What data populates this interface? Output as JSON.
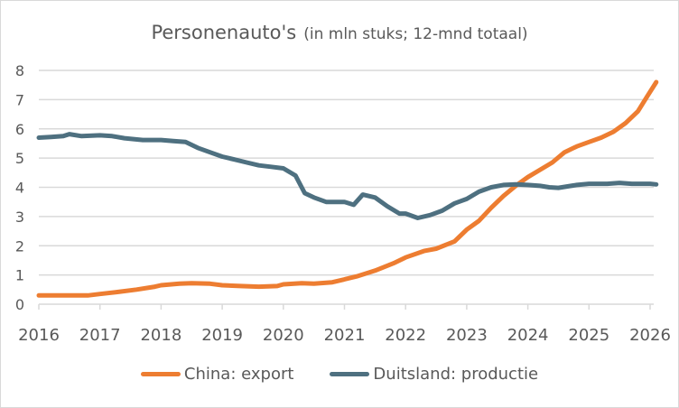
{
  "chart_data": {
    "type": "line",
    "title": "Personenauto's",
    "subtitle": "(in mln stuks; 12-mnd totaal)",
    "xlabel": "",
    "ylabel": "",
    "xlim": [
      2016,
      2026.15
    ],
    "ylim": [
      0,
      8
    ],
    "grid": true,
    "legend_position": "bottom",
    "x_ticks": [
      "2016",
      "2017",
      "2018",
      "2019",
      "2020",
      "2021",
      "2022",
      "2023",
      "2024",
      "2025",
      "2026"
    ],
    "y_ticks": [
      "0",
      "1",
      "2",
      "3",
      "4",
      "5",
      "6",
      "7",
      "8"
    ],
    "series": [
      {
        "name": "China: export",
        "color": "#ED7D31",
        "x": [
          2016,
          2016.5,
          2016.8,
          2017,
          2017.3,
          2017.6,
          2017.9,
          2018,
          2018.3,
          2018.5,
          2018.8,
          2019,
          2019.3,
          2019.6,
          2019.9,
          2020,
          2020.3,
          2020.5,
          2020.8,
          2021,
          2021.2,
          2021.5,
          2021.8,
          2022,
          2022.3,
          2022.5,
          2022.8,
          2023,
          2023.2,
          2023.4,
          2023.6,
          2023.8,
          2024,
          2024.2,
          2024.4,
          2024.6,
          2024.8,
          2025,
          2025.2,
          2025.4,
          2025.6,
          2025.8,
          2025.95,
          2026.1
        ],
        "values": [
          0.3,
          0.3,
          0.3,
          0.35,
          0.42,
          0.5,
          0.6,
          0.65,
          0.7,
          0.72,
          0.7,
          0.65,
          0.62,
          0.6,
          0.62,
          0.68,
          0.72,
          0.7,
          0.75,
          0.85,
          0.95,
          1.15,
          1.4,
          1.6,
          1.82,
          1.9,
          2.15,
          2.55,
          2.85,
          3.3,
          3.7,
          4.05,
          4.35,
          4.6,
          4.85,
          5.2,
          5.4,
          5.55,
          5.7,
          5.9,
          6.2,
          6.6,
          7.1,
          7.6
        ]
      },
      {
        "name": "Duitsland: productie",
        "color": "#4E7080",
        "x": [
          2016,
          2016.2,
          2016.4,
          2016.5,
          2016.7,
          2017,
          2017.2,
          2017.4,
          2017.7,
          2018,
          2018.2,
          2018.4,
          2018.6,
          2018.8,
          2019,
          2019.2,
          2019.4,
          2019.6,
          2019.8,
          2020,
          2020.2,
          2020.35,
          2020.5,
          2020.7,
          2021,
          2021.15,
          2021.3,
          2021.5,
          2021.7,
          2021.9,
          2022,
          2022.2,
          2022.4,
          2022.6,
          2022.8,
          2023,
          2023.2,
          2023.4,
          2023.6,
          2023.8,
          2024,
          2024.2,
          2024.35,
          2024.5,
          2024.8,
          2025,
          2025.3,
          2025.5,
          2025.7,
          2026,
          2026.1
        ],
        "values": [
          5.7,
          5.72,
          5.75,
          5.82,
          5.75,
          5.78,
          5.75,
          5.68,
          5.62,
          5.62,
          5.58,
          5.55,
          5.35,
          5.2,
          5.05,
          4.95,
          4.85,
          4.75,
          4.7,
          4.65,
          4.4,
          3.8,
          3.65,
          3.5,
          3.5,
          3.4,
          3.75,
          3.65,
          3.35,
          3.1,
          3.1,
          2.95,
          3.05,
          3.2,
          3.45,
          3.6,
          3.85,
          4.0,
          4.08,
          4.1,
          4.08,
          4.05,
          4.0,
          3.98,
          4.08,
          4.12,
          4.12,
          4.15,
          4.12,
          4.12,
          4.1
        ]
      }
    ]
  }
}
